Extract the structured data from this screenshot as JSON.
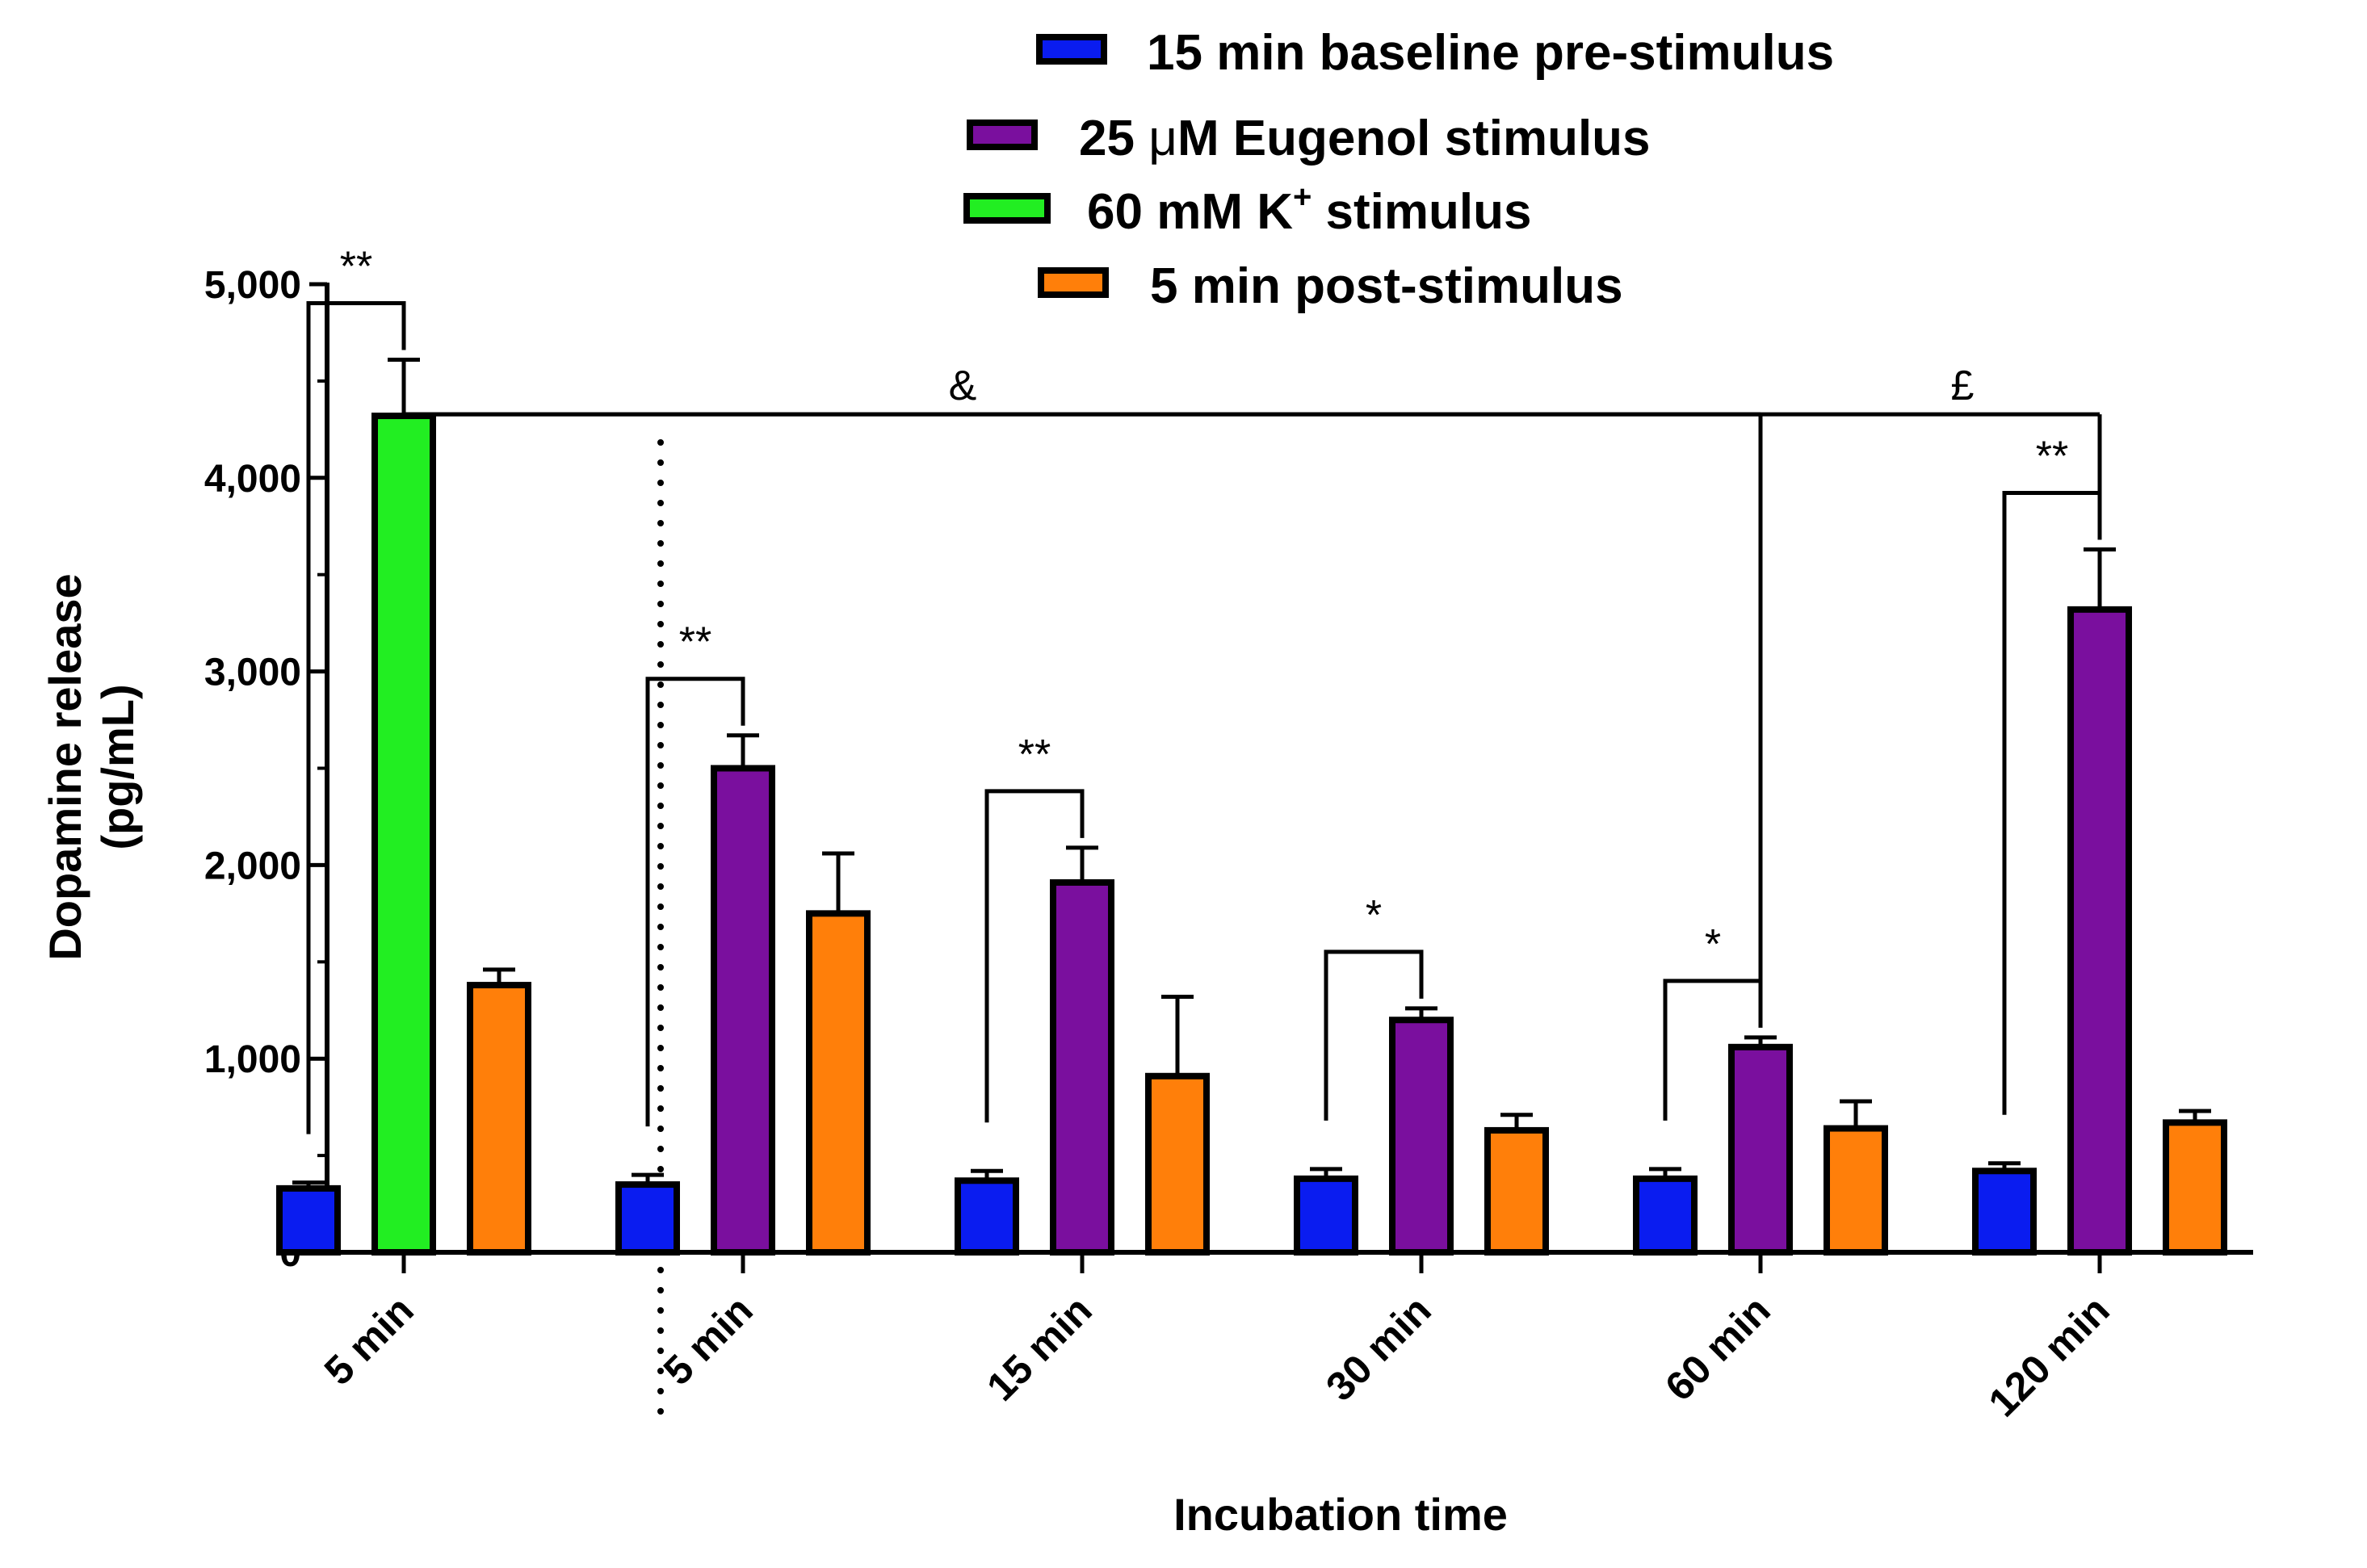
{
  "chart_data": {
    "type": "bar",
    "ylabel": "Dopamine release",
    "ylabel_unit": "(pg/mL)",
    "xlabel": "Incubation time",
    "ylim": [
      0,
      5000
    ],
    "yticks": [
      0,
      1000,
      2000,
      3000,
      4000,
      5000
    ],
    "ytick_labels": [
      "0",
      "1,000",
      "2,000",
      "3,000",
      "4,000",
      "5,000"
    ],
    "legend_position": "top",
    "legend": [
      {
        "key": "baseline",
        "label": "15 min baseline pre-stimulus",
        "color": "#0a1cf0"
      },
      {
        "key": "eugenol",
        "label_parts": [
          "25 ",
          "μ",
          "M Eugenol stimulus"
        ],
        "color": "#7a0f9e"
      },
      {
        "key": "k",
        "label_parts": [
          "60 mM K",
          "+",
          " stimulus"
        ],
        "color": "#22ee22"
      },
      {
        "key": "post",
        "label": "5 min post-stimulus",
        "color": "#ff7f0a"
      }
    ],
    "groups": [
      {
        "label": "5 min",
        "bars": [
          {
            "series": "baseline",
            "value": 330,
            "err": 30
          },
          {
            "series": "k",
            "value": 4320,
            "err": 290
          },
          {
            "series": "post",
            "value": 1380,
            "err": 80
          }
        ]
      },
      {
        "label": "5 min",
        "bars": [
          {
            "series": "baseline",
            "value": 350,
            "err": 50
          },
          {
            "series": "eugenol",
            "value": 2500,
            "err": 170
          },
          {
            "series": "post",
            "value": 1750,
            "err": 310
          }
        ]
      },
      {
        "label": "15 min",
        "bars": [
          {
            "series": "baseline",
            "value": 370,
            "err": 50
          },
          {
            "series": "eugenol",
            "value": 1910,
            "err": 180
          },
          {
            "series": "post",
            "value": 910,
            "err": 410
          }
        ]
      },
      {
        "label": "30 min",
        "bars": [
          {
            "series": "baseline",
            "value": 380,
            "err": 50
          },
          {
            "series": "eugenol",
            "value": 1200,
            "err": 60
          },
          {
            "series": "post",
            "value": 630,
            "err": 80
          }
        ]
      },
      {
        "label": "60 min",
        "bars": [
          {
            "series": "baseline",
            "value": 380,
            "err": 50
          },
          {
            "series": "eugenol",
            "value": 1060,
            "err": 50
          },
          {
            "series": "post",
            "value": 640,
            "err": 140
          }
        ]
      },
      {
        "label": "120 min",
        "bars": [
          {
            "series": "baseline",
            "value": 420,
            "err": 40
          },
          {
            "series": "eugenol",
            "value": 3320,
            "err": 310
          },
          {
            "series": "post",
            "value": 670,
            "err": 60
          }
        ]
      }
    ],
    "annotations": [
      {
        "text": "**",
        "group": 0,
        "from_bar": 0,
        "to_bar": 1
      },
      {
        "text": "**",
        "group": 1,
        "from_bar": 0,
        "to_bar": 1
      },
      {
        "text": "**",
        "group": 2,
        "from_bar": 0,
        "to_bar": 1
      },
      {
        "text": "*",
        "group": 3,
        "from_bar": 0,
        "to_bar": 1
      },
      {
        "text": "*",
        "group": 4,
        "from_bar": 0,
        "to_bar": 1
      },
      {
        "text": "**",
        "group": 5,
        "from_bar": 0,
        "to_bar": 1
      }
    ],
    "long_brackets": [
      {
        "text": "&",
        "from_group": 0,
        "to_group": 4
      },
      {
        "text": "£",
        "from_group": 0,
        "to_group": 5
      }
    ]
  }
}
